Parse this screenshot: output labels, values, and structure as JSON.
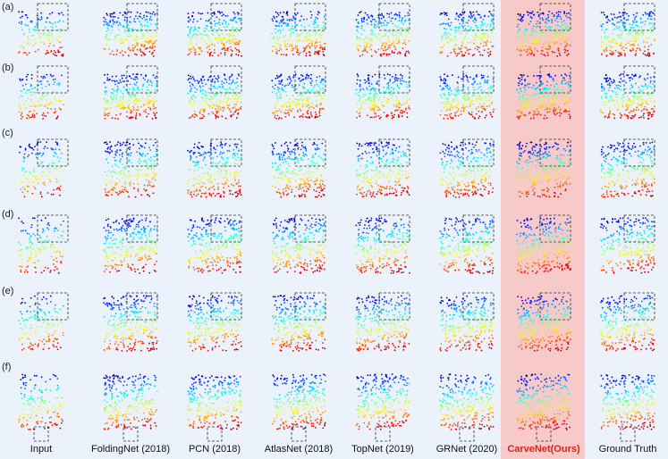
{
  "highlight_color": "#f7c9c9",
  "background_color": "#ecf2fb",
  "row_labels": [
    "(a)",
    "(b)",
    "(c)",
    "(d)",
    "(e)",
    "(f)"
  ],
  "columns": [
    {
      "label": "Input",
      "highlight": false
    },
    {
      "label": "FoldingNet (2018)",
      "highlight": false
    },
    {
      "label": "PCN (2018)",
      "highlight": false
    },
    {
      "label": "AtlasNet (2018)",
      "highlight": false
    },
    {
      "label": "TopNet (2019)",
      "highlight": false
    },
    {
      "label": "GRNet (2020)",
      "highlight": false
    },
    {
      "label": "CarveNet(Ours)",
      "highlight": true
    },
    {
      "label": "Ground Truth",
      "highlight": false
    }
  ],
  "shape_icons": [
    "lamp-shape",
    "lamp-shape-side",
    "chair-shape",
    "table-chair-shape",
    "sofa-shape",
    "armchair-shape"
  ]
}
